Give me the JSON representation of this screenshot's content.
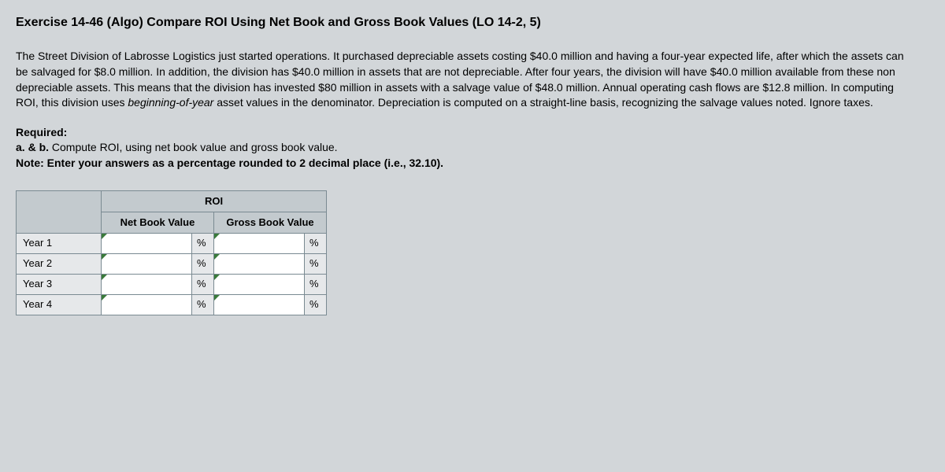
{
  "title": "Exercise 14-46 (Algo) Compare ROI Using Net Book and Gross Book Values (LO 14-2, 5)",
  "body_text_pre_italic": "The Street Division of Labrosse Logistics just started operations. It purchased depreciable assets costing $40.0 million and having a four-year expected life, after which the assets can be salvaged for $8.0 million. In addition, the division has $40.0 million in assets that are not depreciable. After four years, the division will have $40.0 million available from these non depreciable assets. This means that the division has invested $80 million in assets with a salvage value of $48.0 million. Annual operating cash flows are $12.8 million. In computing ROI, this division uses ",
  "body_text_italic": "beginning-of-year",
  "body_text_post_italic": " asset values in the denominator. Depreciation is computed on a straight-line basis, recognizing the salvage values noted. Ignore taxes.",
  "required_label": "Required:",
  "ab_label": "a. & b.",
  "ab_text": " Compute ROI, using net book value and gross book value.",
  "note": "Note: Enter your answers as a percentage rounded to 2 decimal place (i.e., 32.10).",
  "table": {
    "roi_header": "ROI",
    "col1": "Net Book Value",
    "col2": "Gross Book Value",
    "rows": [
      {
        "label": "Year 1",
        "nbv": "",
        "gbv": ""
      },
      {
        "label": "Year 2",
        "nbv": "",
        "gbv": ""
      },
      {
        "label": "Year 3",
        "nbv": "",
        "gbv": ""
      },
      {
        "label": "Year 4",
        "nbv": "",
        "gbv": ""
      }
    ],
    "pct": "%"
  },
  "colors": {
    "page_bg": "#d2d6d9",
    "header_bg": "#c3cace",
    "cell_bg": "#e6e8ea",
    "input_bg": "#ffffff",
    "border": "#7a8a92",
    "corner_mark": "#3a7a3a"
  }
}
